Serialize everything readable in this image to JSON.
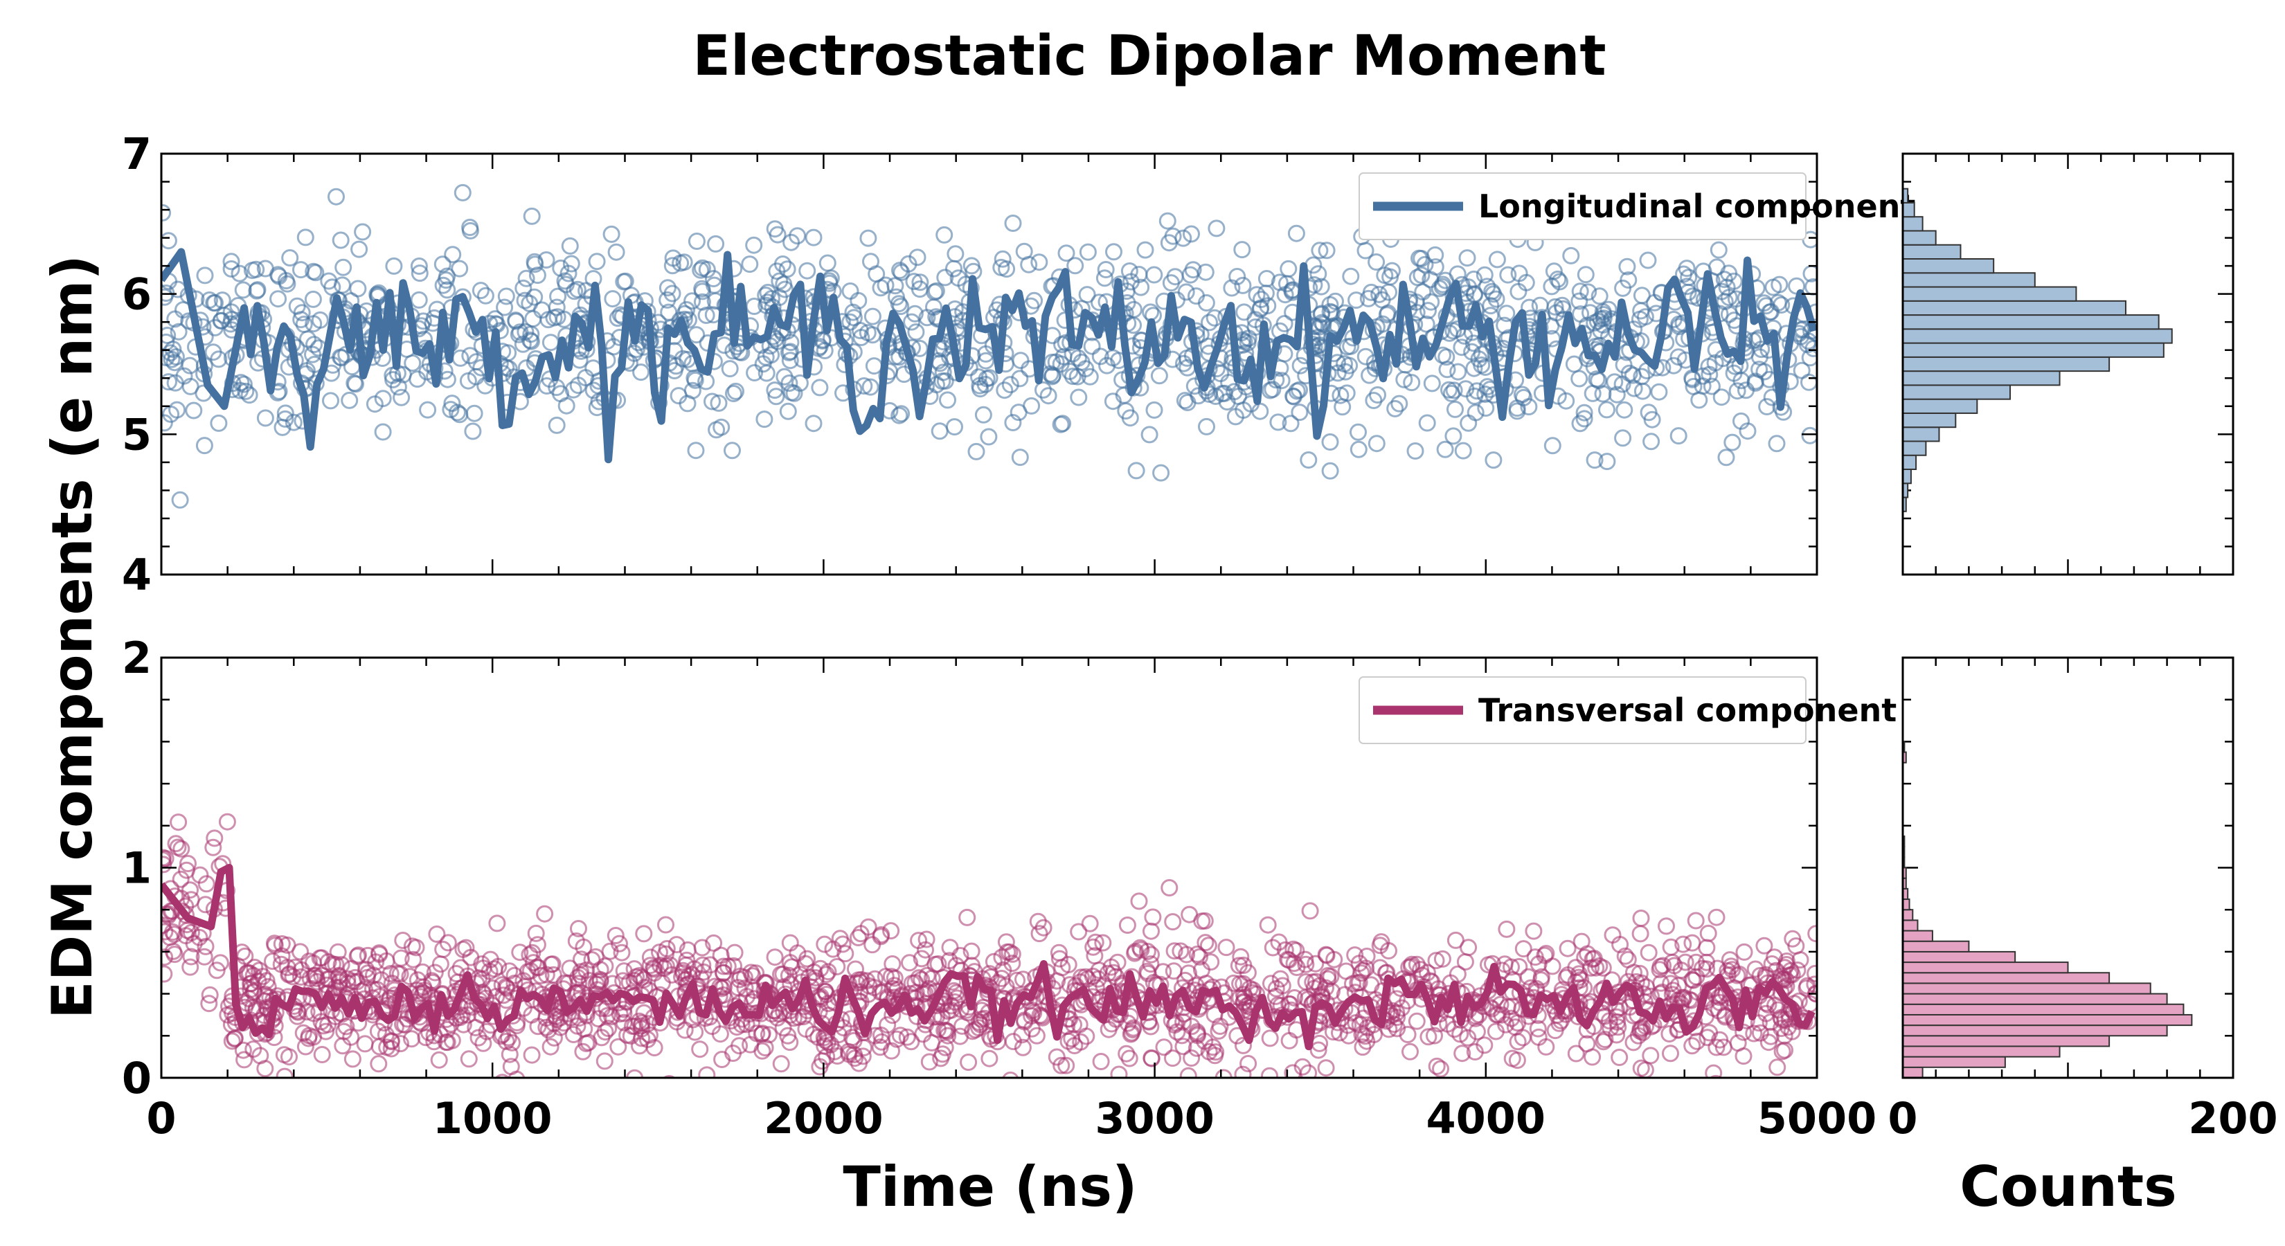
{
  "chart_data": {
    "type": "scatter",
    "title": "Electrostatic Dipolar Moment",
    "xlabel": "Time (ns)",
    "ylabel": "EDM components (e nm)",
    "hist_xlabel": "Counts",
    "x_range": [
      0,
      5000
    ],
    "x_ticks": [
      "0",
      "1000",
      "2000",
      "3000",
      "4000",
      "5000"
    ],
    "hist_x_range": [
      0,
      200
    ],
    "hist_x_ticks": [
      "0",
      "200"
    ],
    "panels": [
      {
        "legend": "Longitudinal component",
        "color": "#44719f",
        "fill": "#a6bfd9",
        "ylim": [
          4,
          7
        ],
        "y_ticks": [
          "4",
          "5",
          "6",
          "7"
        ],
        "scatter_mean": 5.68,
        "scatter_sd": 0.33,
        "scatter_n": 1400,
        "line_mean": 5.68,
        "line_amplitude": 0.28,
        "line_early_dip": [
          [
            0,
            6.1
          ],
          [
            60,
            6.3
          ],
          [
            140,
            5.35
          ],
          [
            190,
            5.2
          ],
          [
            250,
            5.9
          ]
        ],
        "hist_bins": [
          [
            4.45,
            4.55,
            2
          ],
          [
            4.55,
            4.65,
            3
          ],
          [
            4.65,
            4.75,
            5
          ],
          [
            4.75,
            4.85,
            8
          ],
          [
            4.85,
            4.95,
            14
          ],
          [
            4.95,
            5.05,
            22
          ],
          [
            5.05,
            5.15,
            32
          ],
          [
            5.15,
            5.25,
            45
          ],
          [
            5.25,
            5.35,
            65
          ],
          [
            5.35,
            5.45,
            95
          ],
          [
            5.45,
            5.55,
            125
          ],
          [
            5.55,
            5.65,
            158
          ],
          [
            5.65,
            5.75,
            163
          ],
          [
            5.75,
            5.85,
            155
          ],
          [
            5.85,
            5.95,
            135
          ],
          [
            5.95,
            6.05,
            105
          ],
          [
            6.05,
            6.15,
            80
          ],
          [
            6.15,
            6.25,
            55
          ],
          [
            6.25,
            6.35,
            35
          ],
          [
            6.35,
            6.45,
            20
          ],
          [
            6.45,
            6.55,
            12
          ],
          [
            6.55,
            6.65,
            7
          ],
          [
            6.65,
            6.75,
            3
          ]
        ]
      },
      {
        "legend": "Transversal component",
        "color": "#a8336d",
        "fill": "#e5a3c3",
        "ylim": [
          0,
          2
        ],
        "y_ticks": [
          "0",
          "1",
          "2"
        ],
        "scatter_mean": 0.37,
        "scatter_sd": 0.15,
        "scatter_n": 1700,
        "line_mean": 0.35,
        "line_amplitude": 0.08,
        "early_segment": {
          "x_end": 200,
          "mean": 0.82,
          "sd": 0.2,
          "n": 60
        },
        "line_early_dip": [
          [
            0,
            0.92
          ],
          [
            80,
            0.76
          ],
          [
            150,
            0.72
          ],
          [
            180,
            0.98
          ],
          [
            205,
            1.0
          ],
          [
            225,
            0.35
          ]
        ],
        "hist_bins": [
          [
            0.0,
            0.05,
            12
          ],
          [
            0.05,
            0.1,
            62
          ],
          [
            0.1,
            0.15,
            95
          ],
          [
            0.15,
            0.2,
            125
          ],
          [
            0.2,
            0.25,
            160
          ],
          [
            0.25,
            0.3,
            175
          ],
          [
            0.3,
            0.35,
            170
          ],
          [
            0.35,
            0.4,
            160
          ],
          [
            0.4,
            0.45,
            150
          ],
          [
            0.45,
            0.5,
            125
          ],
          [
            0.5,
            0.55,
            100
          ],
          [
            0.55,
            0.6,
            68
          ],
          [
            0.6,
            0.65,
            40
          ],
          [
            0.65,
            0.7,
            18
          ],
          [
            0.7,
            0.75,
            9
          ],
          [
            0.75,
            0.8,
            6
          ],
          [
            0.8,
            0.85,
            4
          ],
          [
            0.85,
            0.9,
            3
          ],
          [
            0.9,
            0.95,
            2
          ],
          [
            0.95,
            1.0,
            2
          ],
          [
            1.0,
            1.05,
            1
          ],
          [
            1.05,
            1.1,
            1
          ],
          [
            1.1,
            1.15,
            1
          ],
          [
            1.5,
            1.55,
            2
          ],
          [
            1.55,
            1.6,
            1
          ]
        ]
      }
    ]
  }
}
